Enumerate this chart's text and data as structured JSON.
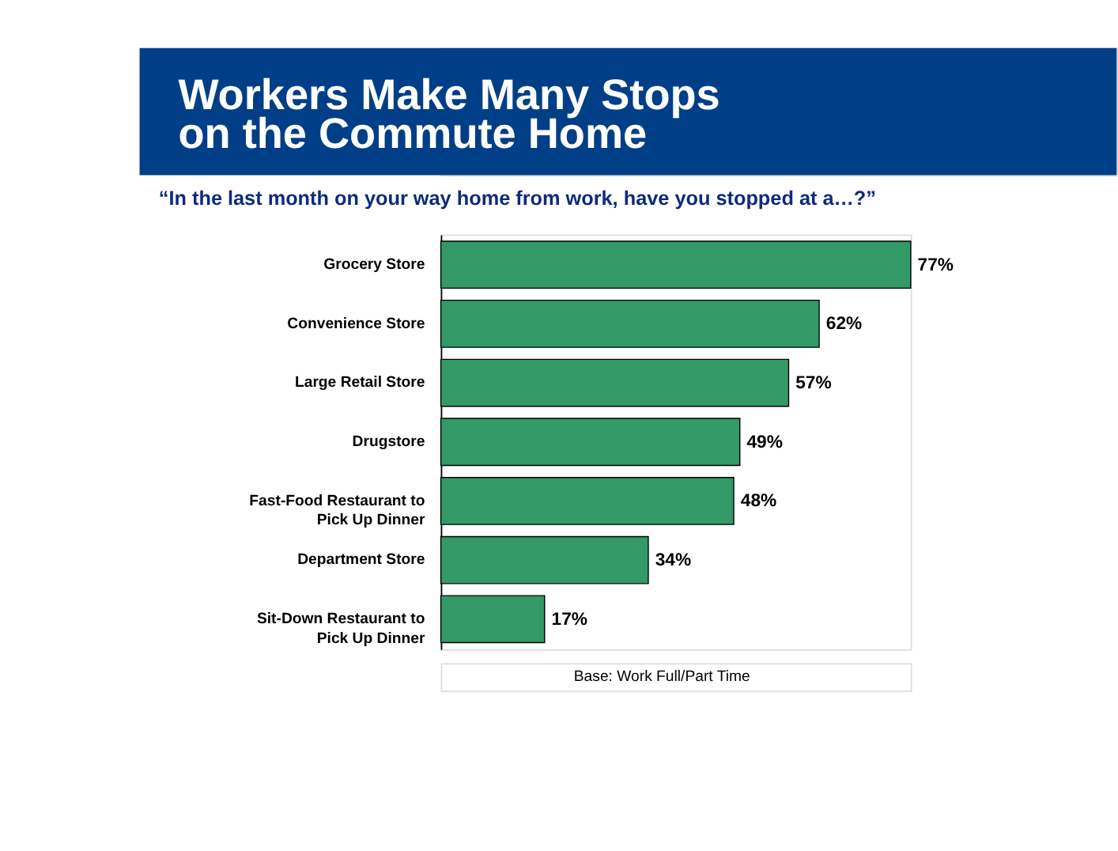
{
  "chart_data": {
    "type": "bar",
    "orientation": "horizontal",
    "title": "Workers Make Many Stops on the Commute Home",
    "subtitle": "“In the last month on your way home from work, have you stopped at a…?”",
    "categories": [
      "Grocery Store",
      "Convenience Store",
      "Large Retail Store",
      "Drugstore",
      "Fast-Food Restaurant to Pick Up Dinner",
      "Department Store",
      "Sit-Down Restaurant to Pick Up Dinner"
    ],
    "values": [
      77,
      62,
      57,
      49,
      48,
      34,
      17
    ],
    "value_labels": [
      "77%",
      "62%",
      "57%",
      "49%",
      "48%",
      "34%",
      "17%"
    ],
    "color": "#339966",
    "annotations": [
      "Base: Work Full/Part Time"
    ]
  }
}
